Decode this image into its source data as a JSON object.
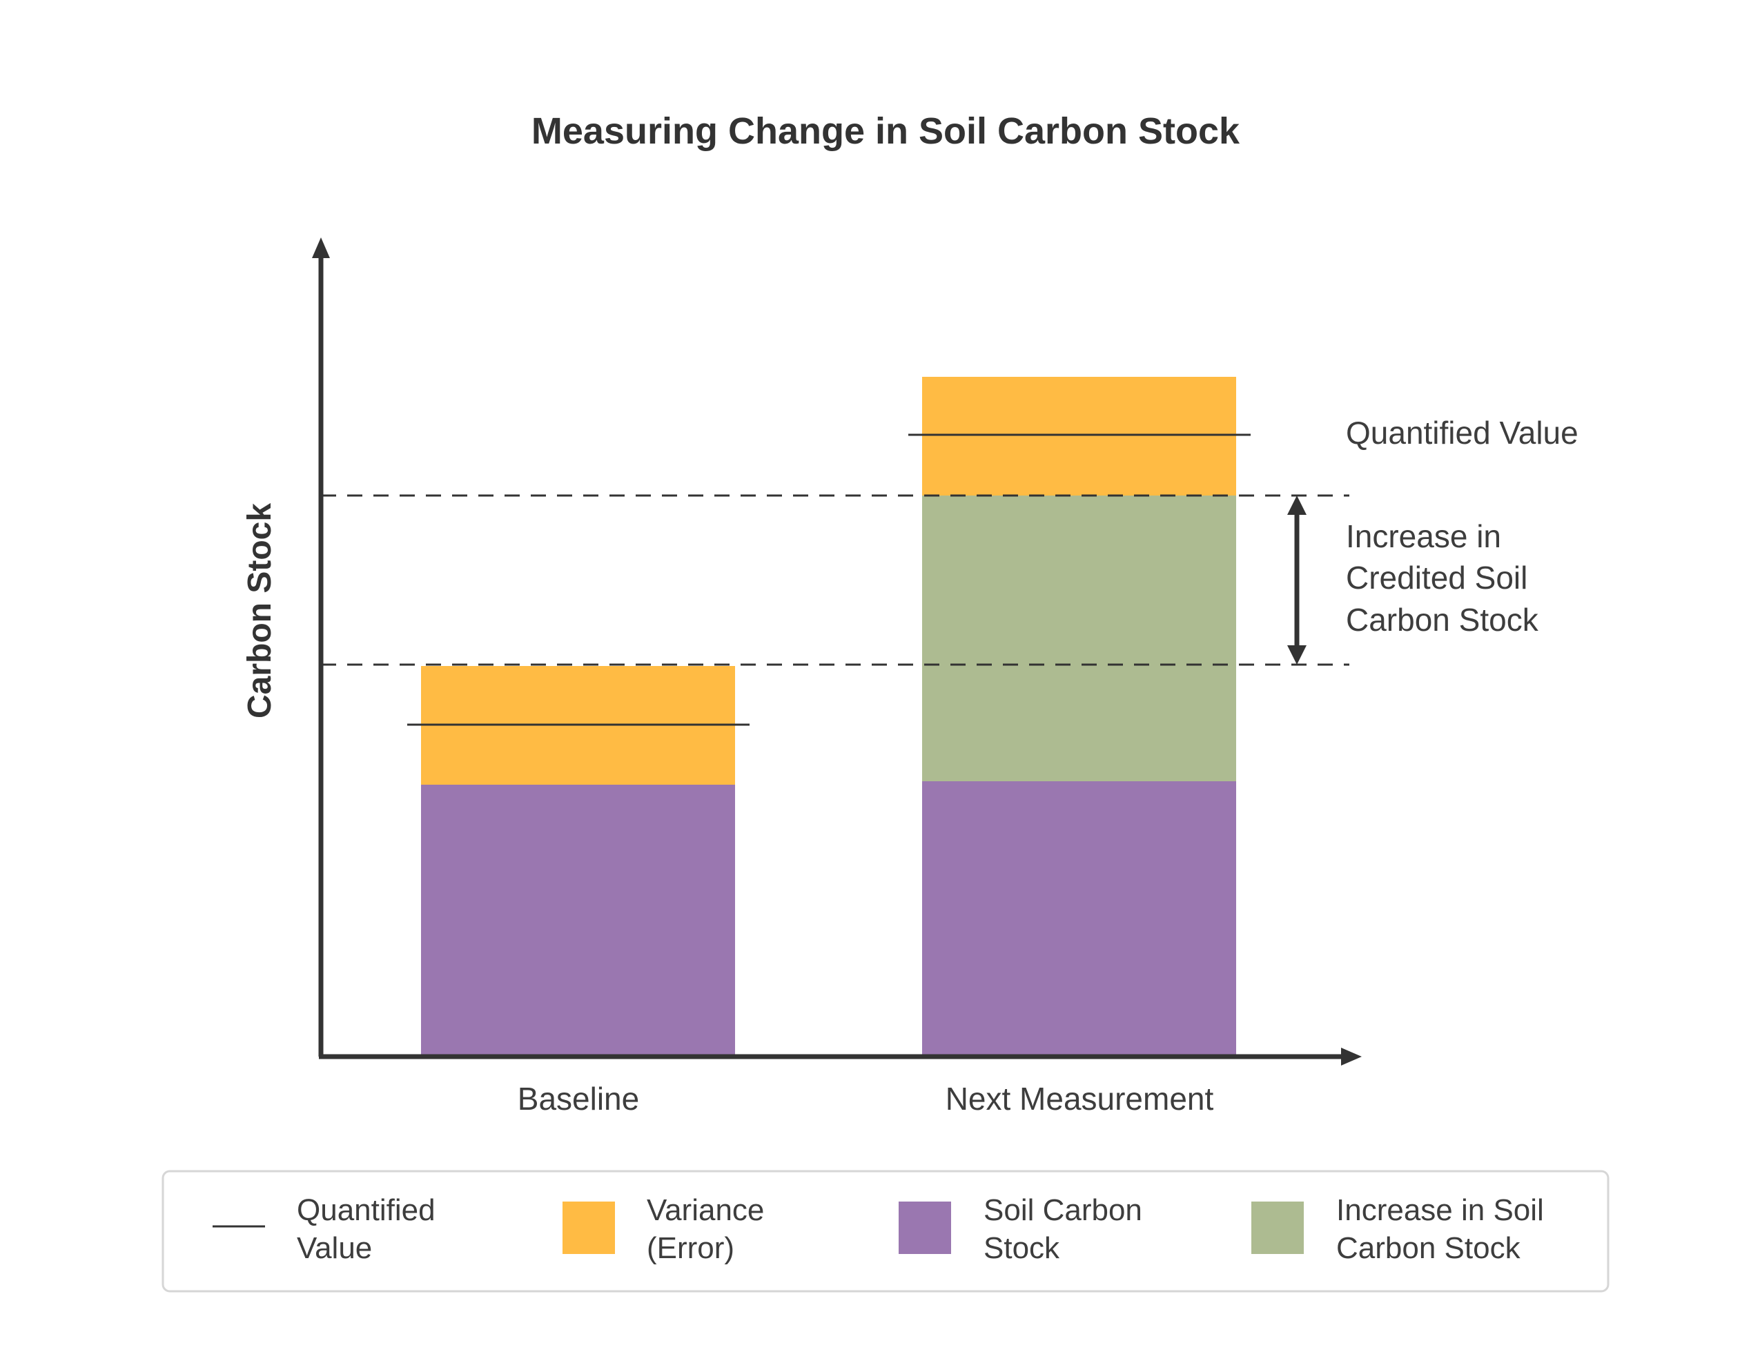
{
  "title": "Measuring Change in Soil Carbon Stock",
  "y_axis_label": "Carbon Stock",
  "categories": [
    "Baseline",
    "Next Measurement"
  ],
  "annotations": {
    "quantified_value": "Quantified Value",
    "increase_lines": [
      "Increase in",
      "Credited Soil",
      "Carbon Stock"
    ]
  },
  "legend": [
    {
      "id": "quantified",
      "lines": [
        "Quantified",
        "Value"
      ],
      "swatch": "line"
    },
    {
      "id": "variance",
      "lines": [
        "Variance",
        "(Error)"
      ],
      "swatch": "box"
    },
    {
      "id": "soil",
      "lines": [
        "Soil Carbon",
        "Stock"
      ],
      "swatch": "box"
    },
    {
      "id": "increase",
      "lines": [
        "Increase in Soil",
        "Carbon Stock"
      ],
      "swatch": "box"
    }
  ],
  "colors": {
    "variance": "#FFBB44",
    "soil": "#9A77B0",
    "increase": "#ADBB91",
    "axis": "#333333",
    "dash": "#333333",
    "legend_border": "#D6D6D6"
  }
}
